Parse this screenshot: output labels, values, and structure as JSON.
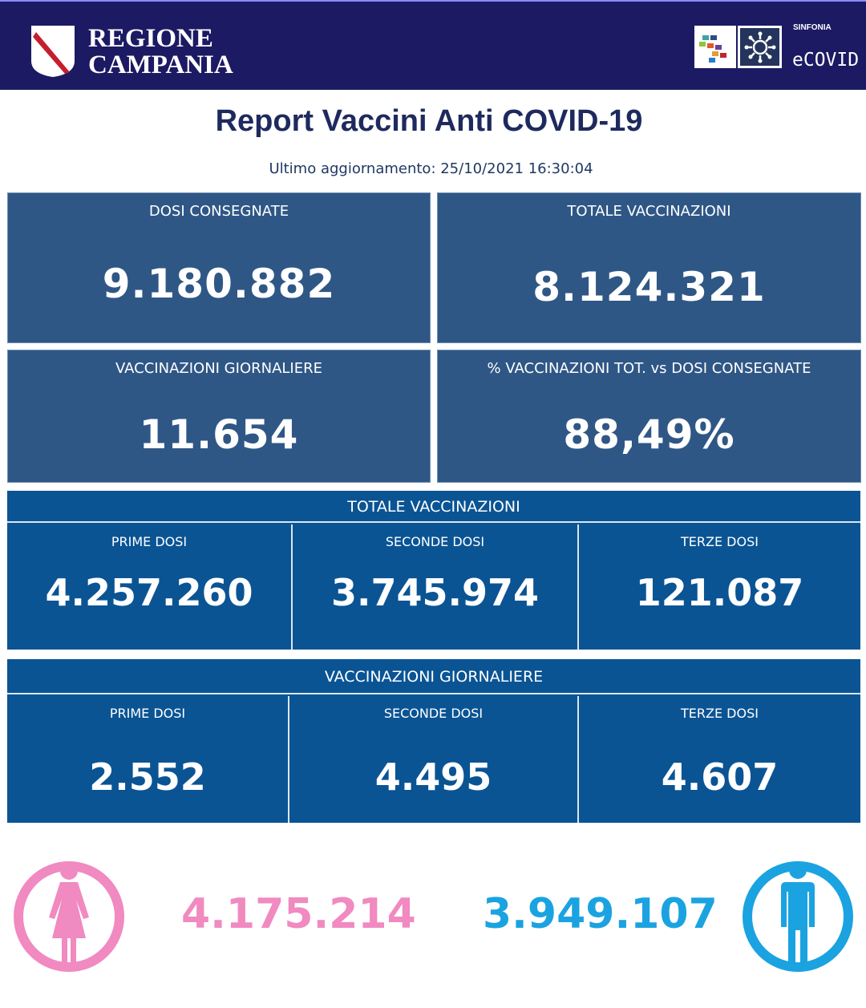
{
  "header": {
    "region_line1": "REGIONE",
    "region_line2": "CAMPANIA",
    "sinfonia": "SINFONIA",
    "ecovid": "eCOVID"
  },
  "title": "Report Vaccini Anti COVID-19",
  "updated": "Ultimo aggiornamento: 25/10/2021  16:30:04",
  "cards": {
    "dosi_consegnate": {
      "label": "DOSI  CONSEGNATE",
      "value": "9.180.882"
    },
    "totale_vaccinazioni": {
      "label": "TOTALE VACCINAZIONI",
      "value": "8.124.321"
    },
    "vaccinazioni_giornaliere": {
      "label": "VACCINAZIONI GIORNALIERE",
      "value": "11.654"
    },
    "percentuale": {
      "label": "% VACCINAZIONI TOT. vs DOSI CONSEGNATE",
      "value": "88,49%"
    }
  },
  "totale_section": {
    "title": "TOTALE VACCINAZIONI",
    "cells": [
      {
        "label": "PRIME DOSI",
        "value": "4.257.260"
      },
      {
        "label": "SECONDE DOSI",
        "value": "3.745.974"
      },
      {
        "label": "TERZE DOSI",
        "value": "121.087"
      }
    ]
  },
  "giornaliere_section": {
    "title": "VACCINAZIONI GIORNALIERE",
    "cells": [
      {
        "label": "PRIME DOSI",
        "value": "2.552"
      },
      {
        "label": "SECONDE DOSI",
        "value": "4.495"
      },
      {
        "label": "TERZE DOSI",
        "value": "4.607"
      }
    ]
  },
  "gender": {
    "female": {
      "icon": "female-icon",
      "value": "4.175.214",
      "color": "#f08ac0"
    },
    "male": {
      "icon": "male-icon",
      "value": "3.949.107",
      "color": "#1aa3e0"
    }
  },
  "colors": {
    "header_bg": "#1c1a63",
    "card_bg": "#2f5786",
    "section_bg": "#0a5494",
    "title": "#1e2a5e"
  }
}
